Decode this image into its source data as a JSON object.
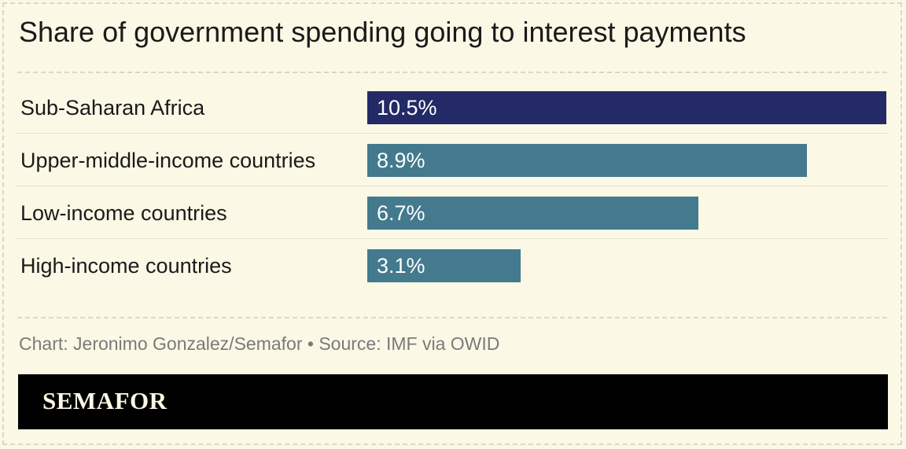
{
  "chart_data": {
    "type": "bar",
    "orientation": "horizontal",
    "title": "Share of government spending going to interest payments",
    "categories": [
      "Sub-Saharan Africa",
      "Upper-middle-income countries",
      "Low-income countries",
      "High-income countries"
    ],
    "values": [
      10.5,
      8.9,
      6.7,
      3.1
    ],
    "value_labels": [
      "10.5%",
      "8.9%",
      "6.7%",
      "3.1%"
    ],
    "xlabel": "",
    "ylabel": "",
    "xlim": [
      0,
      10.5
    ],
    "grid": false,
    "colors": [
      "#232a66",
      "#437a8d",
      "#437a8d",
      "#437a8d"
    ]
  },
  "source": "Chart: Jeronimo Gonzalez/Semafor • Source: IMF via OWID",
  "footer": {
    "logo": "SEMAFOR"
  },
  "colors": {
    "background": "#fbf8e5",
    "highlight": "#232a66",
    "bar": "#437a8d",
    "footer": "#000000"
  }
}
